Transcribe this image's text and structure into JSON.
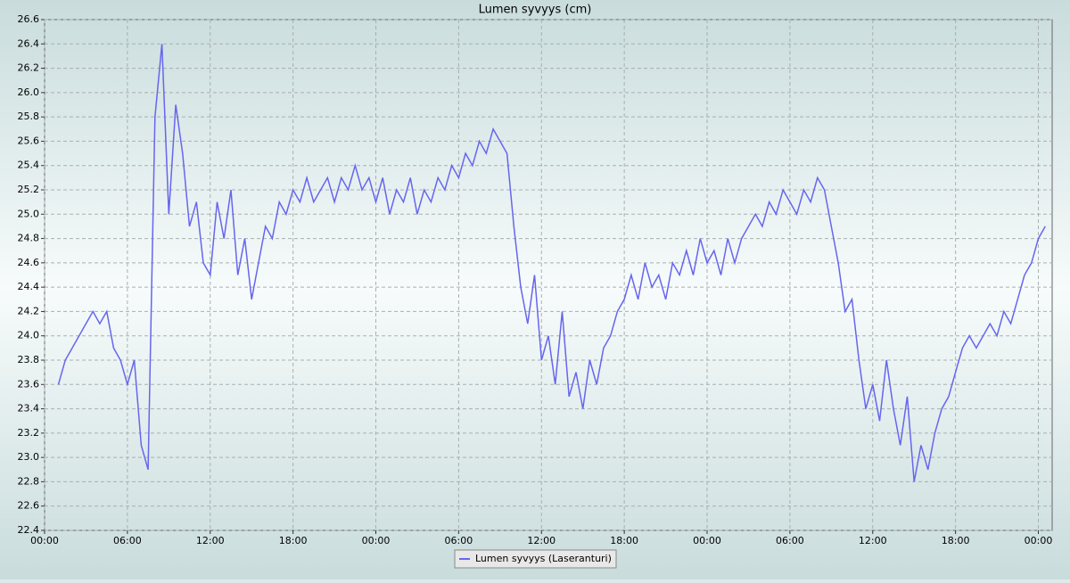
{
  "chart_data": {
    "type": "line",
    "title": "Lumen syvyys (cm)",
    "x": [
      1,
      1.5,
      2,
      2.5,
      3,
      3.5,
      4,
      4.5,
      5,
      5.5,
      6,
      6.5,
      7,
      7.5,
      8,
      8.5,
      9,
      9.5,
      10,
      10.5,
      11,
      11.5,
      12,
      12.5,
      13,
      13.5,
      14,
      14.5,
      15,
      15.5,
      16,
      16.5,
      17,
      17.5,
      18,
      18.5,
      19,
      19.5,
      20,
      20.5,
      21,
      21.5,
      22,
      22.5,
      23,
      23.5,
      24,
      24.5,
      25,
      25.5,
      26,
      26.5,
      27,
      27.5,
      28,
      28.5,
      29,
      29.5,
      30,
      30.5,
      31,
      31.5,
      32,
      32.5,
      33,
      33.5,
      34,
      34.5,
      35,
      35.5,
      36,
      36.5,
      37,
      37.5,
      38,
      38.5,
      39,
      39.5,
      40,
      40.5,
      41,
      41.5,
      42,
      42.5,
      43,
      43.5,
      44,
      44.5,
      45,
      45.5,
      46,
      46.5,
      47,
      47.5,
      48,
      48.5,
      49,
      49.5,
      50,
      50.5,
      51,
      51.5,
      52,
      52.5,
      53,
      53.5,
      54,
      54.5,
      55,
      55.5,
      56,
      56.5,
      57,
      57.5,
      58,
      58.5,
      59,
      59.5,
      60,
      60.5,
      61,
      61.5,
      62,
      62.5,
      63,
      63.5,
      64,
      64.5,
      65,
      65.5,
      66,
      66.5,
      67,
      67.5,
      68,
      68.5,
      69,
      69.5,
      70,
      70.5,
      71,
      71.5,
      72,
      72.5
    ],
    "series": [
      {
        "name": "Lumen syvyys (Laseranturi)",
        "color": "#6666ee",
        "values": [
          23.6,
          23.8,
          23.9,
          24.0,
          24.1,
          24.2,
          24.1,
          24.2,
          23.9,
          23.8,
          23.6,
          23.8,
          23.1,
          22.9,
          25.8,
          26.4,
          25.0,
          25.9,
          25.5,
          24.9,
          25.1,
          24.6,
          24.5,
          25.1,
          24.8,
          25.2,
          24.5,
          24.8,
          24.3,
          24.6,
          24.9,
          24.8,
          25.1,
          25.0,
          25.2,
          25.1,
          25.3,
          25.1,
          25.2,
          25.3,
          25.1,
          25.3,
          25.2,
          25.4,
          25.2,
          25.3,
          25.1,
          25.3,
          25.0,
          25.2,
          25.1,
          25.3,
          25.0,
          25.2,
          25.1,
          25.3,
          25.2,
          25.4,
          25.3,
          25.5,
          25.4,
          25.6,
          25.5,
          25.7,
          25.6,
          25.5,
          24.9,
          24.4,
          24.1,
          24.5,
          23.8,
          24.0,
          23.6,
          24.2,
          23.5,
          23.7,
          23.4,
          23.8,
          23.6,
          23.9,
          24.0,
          24.2,
          24.3,
          24.5,
          24.3,
          24.6,
          24.4,
          24.5,
          24.3,
          24.6,
          24.5,
          24.7,
          24.5,
          24.8,
          24.6,
          24.7,
          24.5,
          24.8,
          24.6,
          24.8,
          24.9,
          25.0,
          24.9,
          25.1,
          25.0,
          25.2,
          25.1,
          25.0,
          25.2,
          25.1,
          25.3,
          25.2,
          24.9,
          24.6,
          24.2,
          24.3,
          23.8,
          23.4,
          23.6,
          23.3,
          23.8,
          23.4,
          23.1,
          23.5,
          22.8,
          23.1,
          22.9,
          23.2,
          23.4,
          23.5,
          23.7,
          23.9,
          24.0,
          23.9,
          24.0,
          24.1,
          24.0,
          24.2,
          24.1,
          24.3,
          24.5,
          24.6,
          24.8,
          24.9
        ]
      }
    ],
    "xlim": [
      0,
      73
    ],
    "xticks": [
      {
        "value": 0,
        "label": "00:00"
      },
      {
        "value": 6,
        "label": "06:00"
      },
      {
        "value": 12,
        "label": "12:00"
      },
      {
        "value": 18,
        "label": "18:00"
      },
      {
        "value": 24,
        "label": "00:00"
      },
      {
        "value": 30,
        "label": "06:00"
      },
      {
        "value": 36,
        "label": "12:00"
      },
      {
        "value": 42,
        "label": "18:00"
      },
      {
        "value": 48,
        "label": "00:00"
      },
      {
        "value": 54,
        "label": "06:00"
      },
      {
        "value": 60,
        "label": "12:00"
      },
      {
        "value": 66,
        "label": "18:00"
      },
      {
        "value": 72,
        "label": "00:00"
      }
    ],
    "ylim": [
      22.4,
      26.6
    ],
    "yticks": [
      22.4,
      22.6,
      22.8,
      {
        "value": 23,
        "label": "23.0"
      },
      23.2,
      23.4,
      23.6,
      23.8,
      {
        "value": 24,
        "label": "24.0"
      },
      24.2,
      24.4,
      24.6,
      24.8,
      {
        "value": 25,
        "label": "25.0"
      },
      25.2,
      25.4,
      25.6,
      25.8,
      {
        "value": 26,
        "label": "26.0"
      },
      26.2,
      26.4,
      26.6
    ],
    "grid": true
  }
}
